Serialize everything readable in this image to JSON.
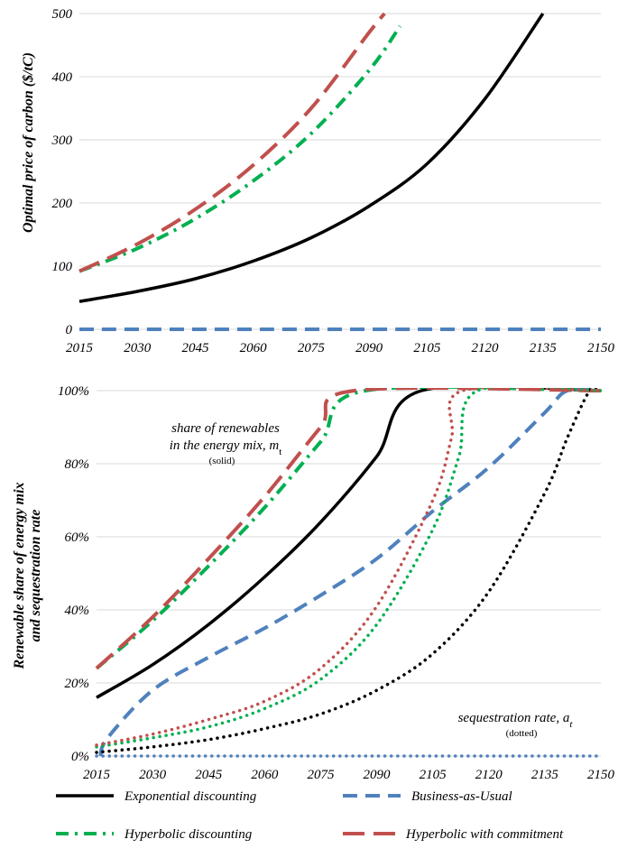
{
  "colors": {
    "exponential": "#000000",
    "bau": "#4f81bd",
    "hyperbolic": "#00b050",
    "commitment": "#c0504d",
    "grid": "#d9d9d9"
  },
  "legend": {
    "exponential": "Exponential discounting",
    "bau": "Business-as-Usual",
    "hyperbolic": "Hyperbolic discounting",
    "commitment": "Hyperbolic with commitment"
  },
  "chart_data": [
    {
      "type": "line",
      "ylabel": "Optimal price of carbon ($/tC)",
      "xlabel": "",
      "x_ticks": [
        "2015",
        "2030",
        "2045",
        "2060",
        "2075",
        "2090",
        "2105",
        "2120",
        "2135",
        "2150"
      ],
      "y_ticks": [
        "0",
        "100",
        "200",
        "300",
        "400",
        "500"
      ],
      "xlim": [
        2015,
        2150
      ],
      "ylim": [
        0,
        500
      ],
      "grid": true,
      "series": [
        {
          "name": "Exponential discounting",
          "line_style": "solid",
          "x": [
            2015,
            2030,
            2045,
            2060,
            2075,
            2090,
            2105,
            2120,
            2135
          ],
          "y": [
            44,
            60,
            80,
            108,
            145,
            195,
            262,
            365,
            500
          ]
        },
        {
          "name": "Business-as-Usual",
          "line_style": "dashed",
          "x": [
            2015,
            2150
          ],
          "y": [
            0,
            0
          ]
        },
        {
          "name": "Hyperbolic discounting",
          "line_style": "dash-dot",
          "x": [
            2015,
            2030,
            2045,
            2060,
            2075,
            2090,
            2098
          ],
          "y": [
            92,
            128,
            175,
            235,
            310,
            410,
            480
          ]
        },
        {
          "name": "Hyperbolic with commitment",
          "line_style": "long-dash",
          "x": [
            2015,
            2030,
            2045,
            2060,
            2075,
            2090,
            2094
          ],
          "y": [
            92,
            135,
            190,
            260,
            350,
            470,
            500
          ]
        }
      ]
    },
    {
      "type": "line",
      "ylabel": "Renewable share of energy mix and sequestration rate",
      "xlabel": "",
      "x_ticks": [
        "2015",
        "2030",
        "2045",
        "2060",
        "2075",
        "2090",
        "2105",
        "2120",
        "2135",
        "2150"
      ],
      "y_ticks": [
        "0%",
        "20%",
        "40%",
        "60%",
        "80%",
        "100%"
      ],
      "xlim": [
        2015,
        2150
      ],
      "ylim": [
        0,
        100
      ],
      "grid": true,
      "annotations": {
        "share_line1": "share of renewables",
        "share_line2": "in the energy mix, m",
        "share_sub": "t",
        "share_note": "(solid)",
        "seq_line": "sequestration rate, a",
        "seq_sub": "t",
        "seq_note": "(dotted)"
      },
      "series": [
        {
          "name": "Exponential discounting",
          "line_style": "solid",
          "x": [
            2015,
            2030,
            2045,
            2060,
            2075,
            2090,
            2102,
            2150
          ],
          "y": [
            16,
            25,
            36,
            49,
            64,
            82,
            100,
            100
          ]
        },
        {
          "name": "Business-as-Usual",
          "line_style": "dashed",
          "x": [
            2016,
            2018,
            2030,
            2045,
            2060,
            2075,
            2090,
            2105,
            2120,
            2135,
            2141,
            2150
          ],
          "y": [
            0,
            5,
            18,
            27,
            35,
            44,
            54,
            67,
            79,
            94,
            100,
            100
          ]
        },
        {
          "name": "Hyperbolic discounting",
          "line_style": "dash-dot",
          "x": [
            2015,
            2030,
            2045,
            2060,
            2075,
            2087,
            2150
          ],
          "y": [
            24,
            37,
            52,
            68,
            86,
            100,
            100
          ]
        },
        {
          "name": "Hyperbolic with commitment",
          "line_style": "long-dash",
          "x": [
            2015,
            2030,
            2045,
            2060,
            2075,
            2084,
            2150
          ],
          "y": [
            24,
            38,
            54,
            71,
            90,
            100,
            100
          ]
        },
        {
          "name": "Exponential discounting",
          "line_style": "dotted",
          "x": [
            2015,
            2030,
            2045,
            2060,
            2075,
            2090,
            2105,
            2120,
            2135,
            2141,
            2147,
            2150
          ],
          "y": [
            1,
            2.5,
            4.5,
            7.5,
            11.5,
            18,
            28,
            45,
            72,
            87,
            100,
            100
          ]
        },
        {
          "name": "Business-as-Usual",
          "line_style": "dotted",
          "x": [
            2015,
            2150
          ],
          "y": [
            0,
            0
          ]
        },
        {
          "name": "Hyperbolic discounting",
          "line_style": "dotted",
          "x": [
            2015,
            2030,
            2045,
            2060,
            2075,
            2090,
            2105,
            2112,
            2117,
            2150
          ],
          "y": [
            2.5,
            5,
            8,
            13,
            21,
            36,
            62,
            82,
            100,
            100
          ]
        },
        {
          "name": "Hyperbolic with commitment",
          "line_style": "dotted",
          "x": [
            2015,
            2030,
            2045,
            2060,
            2075,
            2090,
            2105,
            2110,
            2113,
            2150
          ],
          "y": [
            3,
            6,
            10,
            15,
            24,
            41,
            70,
            87,
            100,
            100
          ]
        }
      ]
    }
  ]
}
